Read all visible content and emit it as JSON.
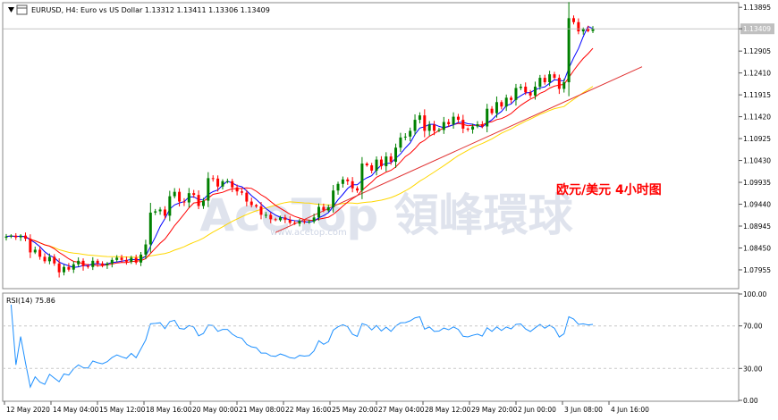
{
  "header": {
    "symbol_text": "EURUSD, H4:  Euro vs US Dollar  1.13312 1.13411 1.13306 1.13409"
  },
  "annotation_cn": "欧元/美元 4小时图",
  "watermark": "AceTop 領峰環球",
  "watermark_url": "www.acetop.com",
  "colors": {
    "bull": "#008000",
    "bear": "#ff0000",
    "ma_fast": "#0000ff",
    "ma_mid": "#ff0000",
    "ma_slow": "#ffd700",
    "trendline": "#e03030",
    "rsi": "#1e90ff",
    "grid": "#c8c8c8",
    "annotation": "#ff0000"
  },
  "chart_data": [
    {
      "type": "candlestick",
      "title": "EURUSD, H4:  Euro vs US Dollar",
      "ylim": [
        1.0755,
        1.1398
      ],
      "y_ticks": [
        "1.13895",
        "1.13409",
        "1.12905",
        "1.12410",
        "1.11915",
        "1.11420",
        "1.10925",
        "1.10430",
        "1.09935",
        "1.09440",
        "1.08945",
        "1.08450",
        "1.07955"
      ],
      "current_price": "1.13409",
      "x_labels": [
        "12 May 2020",
        "14 May 04:00",
        "15 May 12:00",
        "18 May 16:00",
        "20 May 00:00",
        "21 May 08:00",
        "22 May 16:00",
        "25 May 20:00",
        "27 May 04:00",
        "28 May 12:00",
        "29 May 20:00",
        "2 Jun 00:00",
        "3 Jun 08:00",
        "4 Jun 16:00"
      ],
      "closes": [
        1.0871,
        1.0873,
        1.0869,
        1.0873,
        1.0866,
        1.0835,
        1.0841,
        1.0825,
        1.0815,
        1.0825,
        1.081,
        1.079,
        1.0802,
        1.0796,
        1.0808,
        1.0816,
        1.0804,
        1.0802,
        1.0816,
        1.081,
        1.0806,
        1.081,
        1.0818,
        1.0823,
        1.0818,
        1.0814,
        1.0823,
        1.0812,
        1.083,
        1.0853,
        1.0925,
        1.0928,
        1.0932,
        1.0918,
        1.0962,
        1.0972,
        1.095,
        1.0948,
        1.0969,
        1.0965,
        1.094,
        1.0952,
        1.1003,
        1.1002,
        1.0984,
        1.0996,
        1.0996,
        1.0982,
        1.0973,
        1.097,
        1.095,
        1.0942,
        1.0939,
        1.092,
        1.092,
        1.091,
        1.0908,
        1.0914,
        1.0909,
        1.0902,
        1.09,
        1.0906,
        1.0904,
        1.0905,
        1.0914,
        1.0938,
        1.093,
        1.0937,
        1.0975,
        1.099,
        1.1,
        1.0996,
        1.098,
        1.0975,
        1.1036,
        1.1032,
        1.102,
        1.1045,
        1.103,
        1.1052,
        1.104,
        1.1072,
        1.1095,
        1.1097,
        1.111,
        1.1135,
        1.1145,
        1.111,
        1.1124,
        1.111,
        1.1112,
        1.113,
        1.1125,
        1.1142,
        1.1135,
        1.1115,
        1.1113,
        1.112,
        1.1125,
        1.112,
        1.116,
        1.115,
        1.1175,
        1.1165,
        1.1185,
        1.118,
        1.1207,
        1.121,
        1.1197,
        1.119,
        1.121,
        1.123,
        1.122,
        1.1238,
        1.123,
        1.1205,
        1.122,
        1.1365,
        1.1356,
        1.1335,
        1.134,
        1.1336,
        1.1341
      ],
      "rsi": {
        "label": "RSI(14) 75.86",
        "ylim": [
          0,
          100
        ],
        "levels": [
          70,
          30
        ],
        "y_ticks": [
          "100.00",
          "70.00",
          "30.00",
          "0.00"
        ]
      }
    }
  ]
}
